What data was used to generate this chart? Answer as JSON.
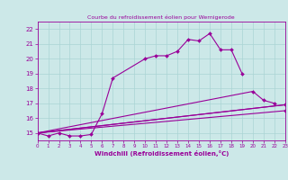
{
  "title": "Courbe du refroidissement éolien pour Wernigerode",
  "xlabel": "Windchill (Refroidissement éolien,°C)",
  "background_color": "#cce8e8",
  "line_color": "#990099",
  "xlim": [
    0,
    23
  ],
  "ylim": [
    14.5,
    22.5
  ],
  "yticks": [
    15,
    16,
    17,
    18,
    19,
    20,
    21,
    22
  ],
  "xticks": [
    0,
    1,
    2,
    3,
    4,
    5,
    6,
    7,
    8,
    9,
    10,
    11,
    12,
    13,
    14,
    15,
    16,
    17,
    18,
    19,
    20,
    21,
    22,
    23
  ],
  "series": [
    {
      "x": [
        0,
        1,
        2,
        3,
        4,
        5,
        6,
        7,
        10,
        11,
        12,
        13,
        14,
        15,
        16,
        17,
        18,
        19
      ],
      "y": [
        15.0,
        14.8,
        15.0,
        14.8,
        14.8,
        14.9,
        16.3,
        18.7,
        20.0,
        20.2,
        20.2,
        20.5,
        21.3,
        21.2,
        21.7,
        20.6,
        20.6,
        19.0
      ]
    },
    {
      "x": [
        0,
        20,
        21,
        22
      ],
      "y": [
        15.0,
        17.8,
        17.2,
        17.0
      ]
    },
    {
      "x": [
        0,
        23
      ],
      "y": [
        15.0,
        16.9
      ]
    },
    {
      "x": [
        0,
        23
      ],
      "y": [
        15.0,
        16.9
      ]
    }
  ]
}
